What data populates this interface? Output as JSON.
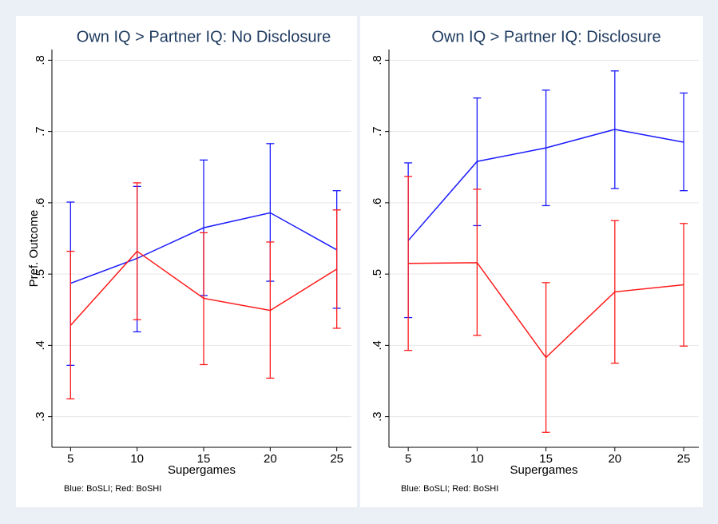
{
  "chart_data": [
    {
      "type": "line",
      "title": "Own IQ > Partner IQ: No Disclosure",
      "xlabel": "Supergames",
      "ylabel": "Pref. Outcome",
      "note": "Blue: BoSLI; Red: BoSHI",
      "x": [
        5,
        10,
        15,
        20,
        25
      ],
      "xlim": [
        3.6,
        26.1
      ],
      "xticks": [
        5,
        10,
        15,
        20,
        25
      ],
      "ylim": [
        0.257,
        0.815
      ],
      "yticks": [
        {
          "value": 0.3,
          "label": ".3"
        },
        {
          "value": 0.4,
          "label": ".4"
        },
        {
          "value": 0.5,
          "label": ".5"
        },
        {
          "value": 0.6,
          "label": ".6"
        },
        {
          "value": 0.7,
          "label": ".7"
        },
        {
          "value": 0.8,
          "label": ".8"
        }
      ],
      "grid": true,
      "series": [
        {
          "name": "BoSLI",
          "color": "#1a1aff",
          "values": [
            0.487,
            0.522,
            0.565,
            0.586,
            0.534
          ],
          "lower": [
            0.372,
            0.419,
            0.47,
            0.49,
            0.452
          ],
          "upper": [
            0.601,
            0.623,
            0.66,
            0.683,
            0.617
          ]
        },
        {
          "name": "BoSHI",
          "color": "#ff1a1a",
          "values": [
            0.428,
            0.532,
            0.466,
            0.449,
            0.507
          ],
          "lower": [
            0.325,
            0.436,
            0.373,
            0.354,
            0.424
          ],
          "upper": [
            0.532,
            0.628,
            0.558,
            0.545,
            0.59
          ]
        }
      ]
    },
    {
      "type": "line",
      "title": "Own IQ > Partner IQ: Disclosure",
      "xlabel": "Supergames",
      "note": "Blue: BoSLI; Red: BoSHI",
      "x": [
        5,
        10,
        15,
        20,
        25
      ],
      "xlim": [
        3.6,
        26.1
      ],
      "xticks": [
        5,
        10,
        15,
        20,
        25
      ],
      "ylim": [
        0.257,
        0.815
      ],
      "yticks": [
        {
          "value": 0.3,
          "label": ".3"
        },
        {
          "value": 0.4,
          "label": ".4"
        },
        {
          "value": 0.5,
          "label": ".5"
        },
        {
          "value": 0.6,
          "label": ".6"
        },
        {
          "value": 0.7,
          "label": ".7"
        },
        {
          "value": 0.8,
          "label": ".8"
        }
      ],
      "grid": true,
      "series": [
        {
          "name": "BoSLI",
          "color": "#1a1aff",
          "values": [
            0.547,
            0.658,
            0.677,
            0.703,
            0.685
          ],
          "lower": [
            0.439,
            0.568,
            0.596,
            0.62,
            0.617
          ],
          "upper": [
            0.656,
            0.747,
            0.758,
            0.785,
            0.754
          ]
        },
        {
          "name": "BoSHI",
          "color": "#ff1a1a",
          "values": [
            0.515,
            0.516,
            0.383,
            0.475,
            0.485
          ],
          "lower": [
            0.393,
            0.414,
            0.278,
            0.375,
            0.399
          ],
          "upper": [
            0.637,
            0.619,
            0.488,
            0.575,
            0.571
          ]
        }
      ]
    }
  ]
}
